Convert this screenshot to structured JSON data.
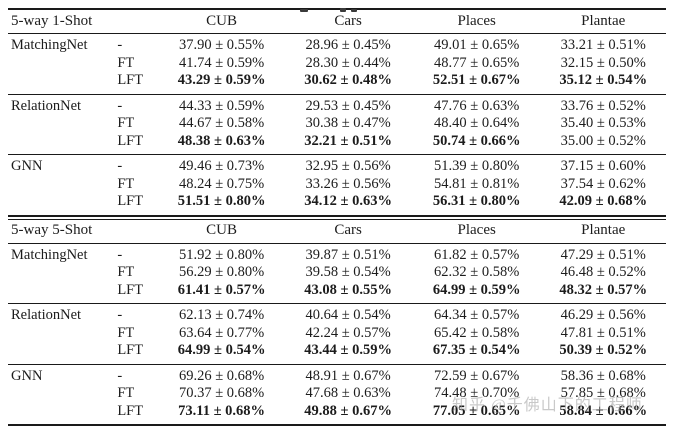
{
  "page": {
    "background": "#ffffff",
    "text_color": "#1c1c1c",
    "rule_color": "#1a1a1a",
    "watermark_color": "#9e9e9e"
  },
  "watermark": {
    "text": "知乎 @千佛山下的工程师"
  },
  "sections": [
    {
      "title": "5-way 1-Shot",
      "columns": [
        "CUB",
        "Cars",
        "Places",
        "Plantae"
      ],
      "groups": [
        {
          "model": "MatchingNet",
          "rows": [
            {
              "variant": "-",
              "cells": [
                {
                  "t": "37.90 ± 0.55%",
                  "b": false
                },
                {
                  "t": "28.96 ± 0.45%",
                  "b": false
                },
                {
                  "t": "49.01 ± 0.65%",
                  "b": false
                },
                {
                  "t": "33.21 ± 0.51%",
                  "b": false
                }
              ]
            },
            {
              "variant": "FT",
              "cells": [
                {
                  "t": "41.74 ± 0.59%",
                  "b": false
                },
                {
                  "t": "28.30 ± 0.44%",
                  "b": false
                },
                {
                  "t": "48.77 ± 0.65%",
                  "b": false
                },
                {
                  "t": "32.15 ± 0.50%",
                  "b": false
                }
              ]
            },
            {
              "variant": "LFT",
              "cells": [
                {
                  "t": "43.29 ± 0.59%",
                  "b": true
                },
                {
                  "t": "30.62 ± 0.48%",
                  "b": true
                },
                {
                  "t": "52.51 ± 0.67%",
                  "b": true
                },
                {
                  "t": "35.12 ± 0.54%",
                  "b": true
                }
              ]
            }
          ]
        },
        {
          "model": "RelationNet",
          "rows": [
            {
              "variant": "-",
              "cells": [
                {
                  "t": "44.33 ± 0.59%",
                  "b": false
                },
                {
                  "t": "29.53 ± 0.45%",
                  "b": false
                },
                {
                  "t": "47.76 ± 0.63%",
                  "b": false
                },
                {
                  "t": "33.76 ± 0.52%",
                  "b": false
                }
              ]
            },
            {
              "variant": "FT",
              "cells": [
                {
                  "t": "44.67 ± 0.58%",
                  "b": false
                },
                {
                  "t": "30.38 ± 0.47%",
                  "b": false
                },
                {
                  "t": "48.40 ± 0.64%",
                  "b": false
                },
                {
                  "t": "35.40 ± 0.53%",
                  "b": false
                }
              ]
            },
            {
              "variant": "LFT",
              "cells": [
                {
                  "t": "48.38 ± 0.63%",
                  "b": true
                },
                {
                  "t": "32.21 ± 0.51%",
                  "b": true
                },
                {
                  "t": "50.74 ± 0.66%",
                  "b": true
                },
                {
                  "t": "35.00 ± 0.52%",
                  "b": false
                }
              ]
            }
          ]
        },
        {
          "model": "GNN",
          "rows": [
            {
              "variant": "-",
              "cells": [
                {
                  "t": "49.46 ± 0.73%",
                  "b": false
                },
                {
                  "t": "32.95 ± 0.56%",
                  "b": false
                },
                {
                  "t": "51.39 ± 0.80%",
                  "b": false
                },
                {
                  "t": "37.15 ± 0.60%",
                  "b": false
                }
              ]
            },
            {
              "variant": "FT",
              "cells": [
                {
                  "t": "48.24 ± 0.75%",
                  "b": false
                },
                {
                  "t": "33.26 ± 0.56%",
                  "b": false
                },
                {
                  "t": "54.81 ± 0.81%",
                  "b": false
                },
                {
                  "t": "37.54 ± 0.62%",
                  "b": false
                }
              ]
            },
            {
              "variant": "LFT",
              "cells": [
                {
                  "t": "51.51 ± 0.80%",
                  "b": true
                },
                {
                  "t": "34.12 ± 0.63%",
                  "b": true
                },
                {
                  "t": "56.31 ± 0.80%",
                  "b": true
                },
                {
                  "t": "42.09 ± 0.68%",
                  "b": true
                }
              ]
            }
          ]
        }
      ]
    },
    {
      "title": "5-way 5-Shot",
      "columns": [
        "CUB",
        "Cars",
        "Places",
        "Plantae"
      ],
      "groups": [
        {
          "model": "MatchingNet",
          "rows": [
            {
              "variant": "-",
              "cells": [
                {
                  "t": "51.92 ± 0.80%",
                  "b": false
                },
                {
                  "t": "39.87 ± 0.51%",
                  "b": false
                },
                {
                  "t": "61.82 ± 0.57%",
                  "b": false
                },
                {
                  "t": "47.29 ± 0.51%",
                  "b": false
                }
              ]
            },
            {
              "variant": "FT",
              "cells": [
                {
                  "t": "56.29 ± 0.80%",
                  "b": false
                },
                {
                  "t": "39.58 ± 0.54%",
                  "b": false
                },
                {
                  "t": "62.32 ± 0.58%",
                  "b": false
                },
                {
                  "t": "46.48 ± 0.52%",
                  "b": false
                }
              ]
            },
            {
              "variant": "LFT",
              "cells": [
                {
                  "t": "61.41 ± 0.57%",
                  "b": true
                },
                {
                  "t": "43.08 ± 0.55%",
                  "b": true
                },
                {
                  "t": "64.99 ± 0.59%",
                  "b": true
                },
                {
                  "t": "48.32 ± 0.57%",
                  "b": true
                }
              ]
            }
          ]
        },
        {
          "model": "RelationNet",
          "rows": [
            {
              "variant": "-",
              "cells": [
                {
                  "t": "62.13 ± 0.74%",
                  "b": false
                },
                {
                  "t": "40.64 ± 0.54%",
                  "b": false
                },
                {
                  "t": "64.34 ± 0.57%",
                  "b": false
                },
                {
                  "t": "46.29 ± 0.56%",
                  "b": false
                }
              ]
            },
            {
              "variant": "FT",
              "cells": [
                {
                  "t": "63.64 ± 0.77%",
                  "b": false
                },
                {
                  "t": "42.24 ± 0.57%",
                  "b": false
                },
                {
                  "t": "65.42 ± 0.58%",
                  "b": false
                },
                {
                  "t": "47.81 ± 0.51%",
                  "b": false
                }
              ]
            },
            {
              "variant": "LFT",
              "cells": [
                {
                  "t": "64.99 ± 0.54%",
                  "b": true
                },
                {
                  "t": "43.44 ± 0.59%",
                  "b": true
                },
                {
                  "t": "67.35 ± 0.54%",
                  "b": true
                },
                {
                  "t": "50.39 ± 0.52%",
                  "b": true
                }
              ]
            }
          ]
        },
        {
          "model": "GNN",
          "rows": [
            {
              "variant": "-",
              "cells": [
                {
                  "t": "69.26 ± 0.68%",
                  "b": false
                },
                {
                  "t": "48.91 ± 0.67%",
                  "b": false
                },
                {
                  "t": "72.59 ± 0.67%",
                  "b": false
                },
                {
                  "t": "58.36 ± 0.68%",
                  "b": false
                }
              ]
            },
            {
              "variant": "FT",
              "cells": [
                {
                  "t": "70.37 ± 0.68%",
                  "b": false
                },
                {
                  "t": "47.68 ± 0.63%",
                  "b": false
                },
                {
                  "t": "74.48 ± 0.70%",
                  "b": false
                },
                {
                  "t": "57.85 ± 0.68%",
                  "b": false
                }
              ]
            },
            {
              "variant": "LFT",
              "cells": [
                {
                  "t": "73.11 ± 0.68%",
                  "b": true
                },
                {
                  "t": "49.88 ± 0.67%",
                  "b": true
                },
                {
                  "t": "77.05 ± 0.65%",
                  "b": true
                },
                {
                  "t": "58.84 ± 0.66%",
                  "b": true
                }
              ]
            }
          ]
        }
      ]
    }
  ]
}
